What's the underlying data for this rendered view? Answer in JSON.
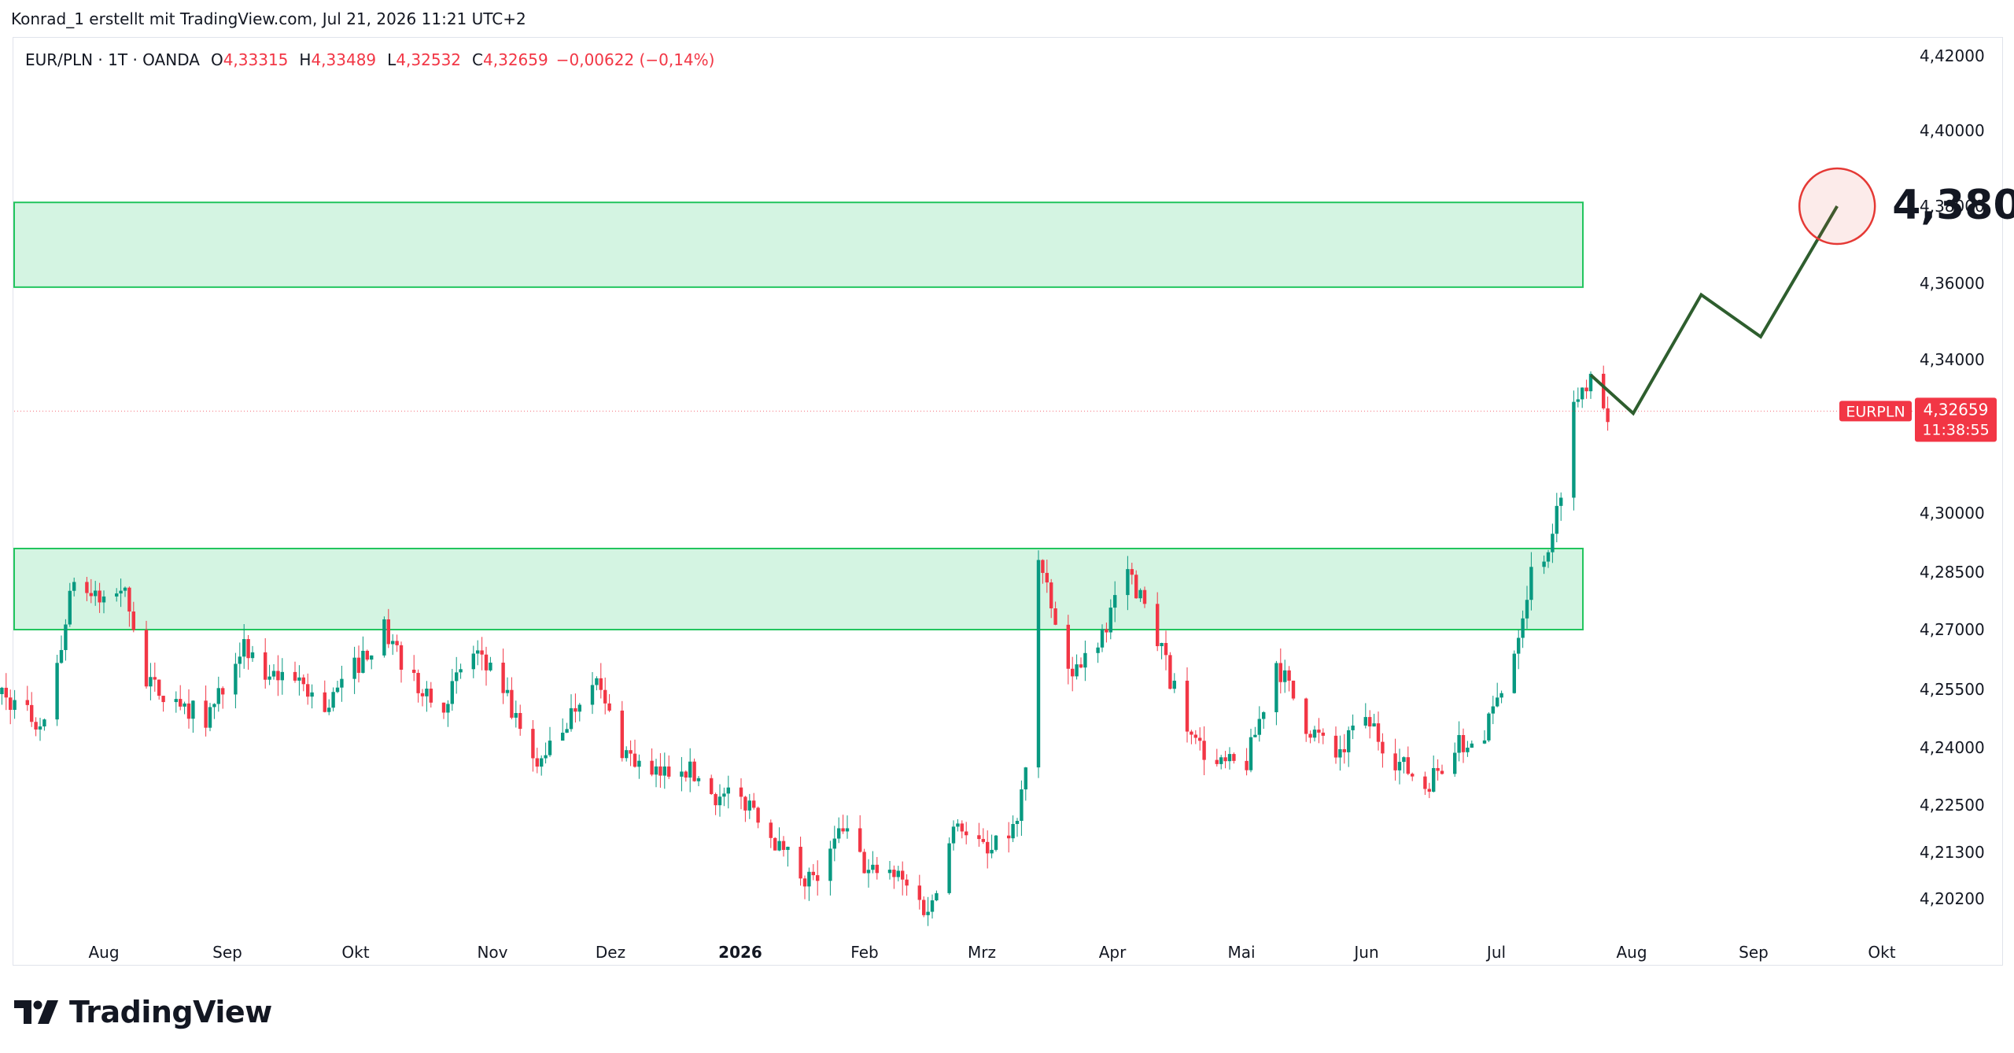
{
  "header": {
    "credit": "Konrad_1 erstellt mit TradingView.com, Jul 21, 2026 11:21 UTC+2"
  },
  "legend": {
    "symbol": "EUR/PLN · 1T · OANDA",
    "o_label": "O",
    "o_value": "4,33315",
    "h_label": "H",
    "h_value": "4,33489",
    "l_label": "L",
    "l_value": "4,32532",
    "c_label": "C",
    "c_value": "4,32659",
    "change": "−0,00622 (−0,14%)"
  },
  "price_tag": {
    "symbol": "EURPLN",
    "price": "4,32659",
    "countdown": "11:38:55"
  },
  "annotation": {
    "target_label": "4,380"
  },
  "brand": {
    "name": "TradingView"
  },
  "colors": {
    "up": "#089981",
    "down": "#f23645",
    "zone_fill": "#d4f4e2",
    "zone_border": "#22c55e",
    "projection": "#2e5e2e",
    "target_circle": "#e53935"
  },
  "chart_data": {
    "type": "candlestick",
    "instrument": "EUR/PLN",
    "timeframe": "1T",
    "source": "OANDA",
    "y_axis": {
      "ticks": [
        4.202,
        4.213,
        4.225,
        4.24,
        4.255,
        4.27,
        4.285,
        4.3,
        4.34,
        4.36,
        4.38,
        4.4,
        4.42
      ],
      "tick_labels": [
        "4,20200",
        "4,21300",
        "4,22500",
        "4,24000",
        "4,25500",
        "4,27000",
        "4,28500",
        "4,30000",
        "4,34000",
        "4,36000",
        "4,38000",
        "4,40000",
        "4,42000"
      ]
    },
    "x_axis": {
      "labels": [
        "Aug",
        "Sep",
        "Okt",
        "Nov",
        "Dez",
        "2026",
        "Feb",
        "Mrz",
        "Apr",
        "Mai",
        "Jun",
        "Jul",
        "Aug",
        "Sep",
        "Okt"
      ],
      "bold": [
        "2026"
      ]
    },
    "last_price": 4.32659,
    "current_ohlc": {
      "open": 4.33315,
      "high": 4.33489,
      "low": 4.32532,
      "close": 4.32659
    },
    "zones": [
      {
        "top": 4.381,
        "bottom": 4.359
      },
      {
        "top": 4.291,
        "bottom": 4.27
      }
    ],
    "projection_path": [
      {
        "date": "2026-07-17",
        "price": 4.336
      },
      {
        "date": "2026-07-27",
        "price": 4.326
      },
      {
        "date": "2026-08-12",
        "price": 4.357
      },
      {
        "date": "2026-08-26",
        "price": 4.346
      },
      {
        "date": "2026-09-13",
        "price": 4.38
      }
    ],
    "target": {
      "date": "2026-09-13",
      "price": 4.38
    },
    "price_path": [
      [
        "2025-07-01",
        4.262
      ],
      [
        "2025-07-10",
        4.252
      ],
      [
        "2025-07-18",
        4.245
      ],
      [
        "2025-07-25",
        4.283
      ],
      [
        "2025-08-01",
        4.276
      ],
      [
        "2025-08-06",
        4.282
      ],
      [
        "2025-08-11",
        4.256
      ],
      [
        "2025-08-18",
        4.253
      ],
      [
        "2025-08-25",
        4.247
      ],
      [
        "2025-09-02",
        4.266
      ],
      [
        "2025-09-08",
        4.258
      ],
      [
        "2025-09-15",
        4.259
      ],
      [
        "2025-09-22",
        4.25
      ],
      [
        "2025-09-30",
        4.262
      ],
      [
        "2025-10-06",
        4.27
      ],
      [
        "2025-10-13",
        4.257
      ],
      [
        "2025-10-20",
        4.252
      ],
      [
        "2025-10-27",
        4.264
      ],
      [
        "2025-11-03",
        4.255
      ],
      [
        "2025-11-10",
        4.235
      ],
      [
        "2025-11-17",
        4.245
      ],
      [
        "2025-11-24",
        4.259
      ],
      [
        "2025-12-01",
        4.24
      ],
      [
        "2025-12-08",
        4.232
      ],
      [
        "2025-12-15",
        4.236
      ],
      [
        "2025-12-22",
        4.228
      ],
      [
        "2026-01-01",
        4.225
      ],
      [
        "2026-01-08",
        4.212
      ],
      [
        "2026-01-15",
        4.206
      ],
      [
        "2026-01-22",
        4.218
      ],
      [
        "2026-01-28",
        4.208
      ],
      [
        "2026-02-04",
        4.207
      ],
      [
        "2026-02-11",
        4.199
      ],
      [
        "2026-02-18",
        4.222
      ],
      [
        "2026-02-25",
        4.212
      ],
      [
        "2026-03-04",
        4.22
      ],
      [
        "2026-03-06",
        4.236
      ],
      [
        "2026-03-09",
        4.288
      ],
      [
        "2026-03-16",
        4.258
      ],
      [
        "2026-03-23",
        4.268
      ],
      [
        "2026-03-30",
        4.286
      ],
      [
        "2026-04-06",
        4.268
      ],
      [
        "2026-04-13",
        4.244
      ],
      [
        "2026-04-20",
        4.235
      ],
      [
        "2026-04-27",
        4.236
      ],
      [
        "2026-05-04",
        4.262
      ],
      [
        "2026-05-11",
        4.246
      ],
      [
        "2026-05-18",
        4.238
      ],
      [
        "2026-05-25",
        4.247
      ],
      [
        "2026-06-01",
        4.237
      ],
      [
        "2026-06-08",
        4.23
      ],
      [
        "2026-06-15",
        4.24
      ],
      [
        "2026-06-22",
        4.243
      ],
      [
        "2026-06-29",
        4.265
      ],
      [
        "2026-07-03",
        4.285
      ],
      [
        "2026-07-08",
        4.293
      ],
      [
        "2026-07-13",
        4.328
      ],
      [
        "2026-07-17",
        4.337
      ],
      [
        "2026-07-21",
        4.3266
      ]
    ]
  }
}
